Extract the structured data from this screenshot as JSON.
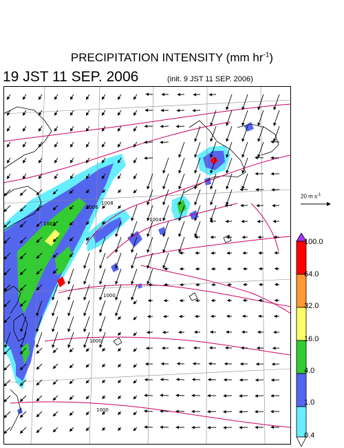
{
  "title": {
    "main": "PRECIPITATION INTENSITY (mm hr",
    "exp": "-1",
    "close": ")"
  },
  "valid_time": "19 JST 11 SEP. 2006",
  "init_time": "(init. 9 JST 11 SEP. 2006)",
  "reference_vector": {
    "label": "20 m s",
    "exp": "-1"
  },
  "colorbar": {
    "levels": [
      "100.0",
      "64.0",
      "32.0",
      "16.0",
      "4.0",
      "1.0",
      "0.4"
    ],
    "colors": [
      "#ff0000",
      "#ff9933",
      "#ffff66",
      "#33cc33",
      "#5566ee",
      "#66eeff"
    ],
    "over_color": "#aa33ff",
    "under_color": "#ffffff"
  },
  "pressure_contour_labels": [
    "1000",
    "1002",
    "1004",
    "1006",
    "1008"
  ],
  "colors": {
    "isobar": "#cc0066",
    "coastline": "#000000",
    "grid": "#888888",
    "vector": "#000000"
  }
}
